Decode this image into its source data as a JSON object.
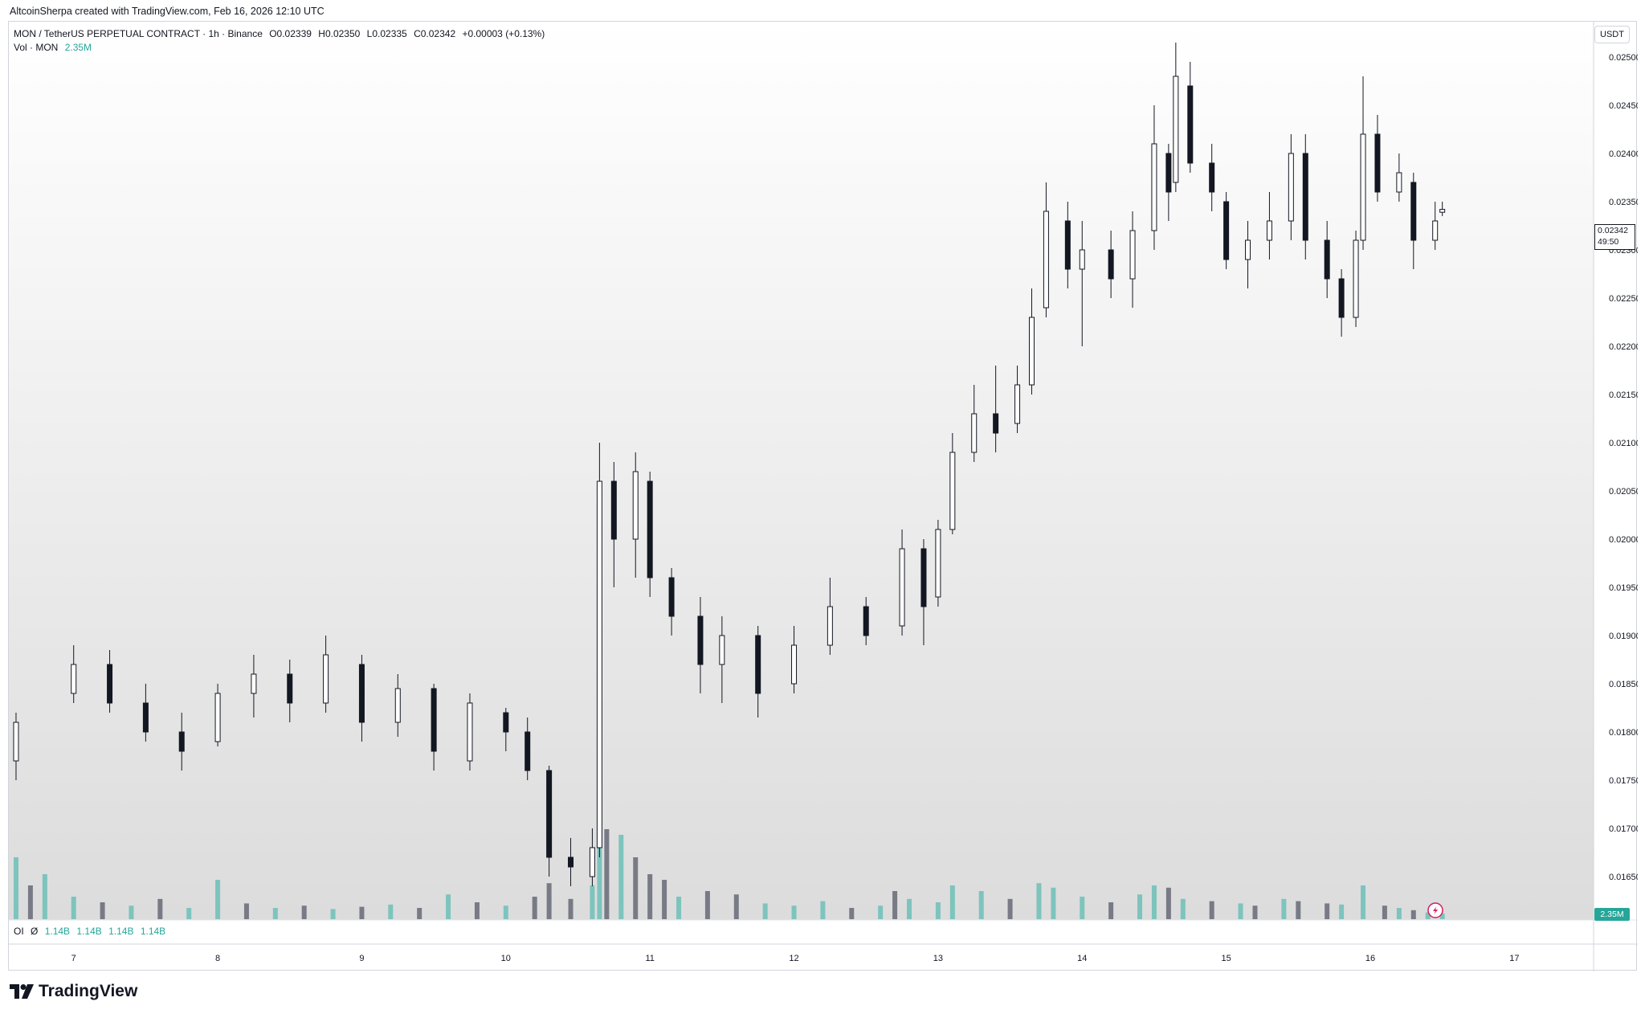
{
  "attribution": "AltcoinSherpa created with TradingView.com, Feb 16, 2026 12:10 UTC",
  "legend": {
    "symbol": "MON / TetherUS PERPETUAL CONTRACT · 1h · Binance",
    "open": "O0.02339",
    "high": "H0.02350",
    "low": "L0.02335",
    "close": "C0.02342",
    "change": "+0.00003 (+0.13%)",
    "vol_label": "Vol · MON",
    "vol_value": "2.35M"
  },
  "oi_legend": {
    "label": "OI",
    "symbol": "Ø",
    "values": [
      "1.14B",
      "1.14B",
      "1.14B",
      "1.14B"
    ]
  },
  "currency": "USDT",
  "price_tag": {
    "price": "0.02342",
    "countdown": "49:50"
  },
  "vol_tag": "2.35M",
  "logo_text": "TradingView",
  "colors": {
    "bull_volume": "#7dc4bd",
    "bear_volume": "#787b86",
    "bull_body": "#ffffff",
    "bear_body": "#131722",
    "wick": "#131722"
  },
  "chart_data": {
    "type": "candlestick",
    "title": "",
    "xlabel": "",
    "ylabel": "",
    "ylim": [
      0.0162,
      0.0252
    ],
    "y_ticks": [
      "0.01650",
      "0.01700",
      "0.01750",
      "0.01800",
      "0.01850",
      "0.01900",
      "0.01950",
      "0.02000",
      "0.02050",
      "0.02100",
      "0.02150",
      "0.02200",
      "0.02250",
      "0.02300",
      "0.02350",
      "0.02400",
      "0.02450",
      "0.02500"
    ],
    "x_ticks": [
      "7",
      "8",
      "9",
      "10",
      "11",
      "12",
      "13",
      "14",
      "15",
      "16",
      "17"
    ],
    "x_range": [
      6.55,
      17.55
    ],
    "grid": false,
    "series": [
      {
        "kind": "ohlc",
        "candles": [
          {
            "t": 6.6,
            "o": 0.0177,
            "h": 0.0182,
            "l": 0.0175,
            "c": 0.0181
          },
          {
            "t": 7.0,
            "o": 0.0184,
            "h": 0.0189,
            "l": 0.0183,
            "c": 0.0187
          },
          {
            "t": 7.25,
            "o": 0.0187,
            "h": 0.01885,
            "l": 0.0182,
            "c": 0.0183
          },
          {
            "t": 7.5,
            "o": 0.0183,
            "h": 0.0185,
            "l": 0.0179,
            "c": 0.018
          },
          {
            "t": 7.75,
            "o": 0.018,
            "h": 0.0182,
            "l": 0.0176,
            "c": 0.0178
          },
          {
            "t": 8.0,
            "o": 0.0179,
            "h": 0.0185,
            "l": 0.01785,
            "c": 0.0184
          },
          {
            "t": 8.25,
            "o": 0.0184,
            "h": 0.0188,
            "l": 0.01815,
            "c": 0.0186
          },
          {
            "t": 8.5,
            "o": 0.0186,
            "h": 0.01875,
            "l": 0.0181,
            "c": 0.0183
          },
          {
            "t": 8.75,
            "o": 0.0183,
            "h": 0.019,
            "l": 0.0182,
            "c": 0.0188
          },
          {
            "t": 9.0,
            "o": 0.0187,
            "h": 0.0188,
            "l": 0.0179,
            "c": 0.0181
          },
          {
            "t": 9.25,
            "o": 0.0181,
            "h": 0.0186,
            "l": 0.01795,
            "c": 0.01845
          },
          {
            "t": 9.5,
            "o": 0.01845,
            "h": 0.0185,
            "l": 0.0176,
            "c": 0.0178
          },
          {
            "t": 9.75,
            "o": 0.0177,
            "h": 0.0184,
            "l": 0.0176,
            "c": 0.0183
          },
          {
            "t": 10.0,
            "o": 0.0182,
            "h": 0.01825,
            "l": 0.0178,
            "c": 0.018
          },
          {
            "t": 10.15,
            "o": 0.018,
            "h": 0.01815,
            "l": 0.0175,
            "c": 0.0176
          },
          {
            "t": 10.3,
            "o": 0.0176,
            "h": 0.01765,
            "l": 0.0165,
            "c": 0.0167
          },
          {
            "t": 10.45,
            "o": 0.0167,
            "h": 0.0169,
            "l": 0.0164,
            "c": 0.0166
          },
          {
            "t": 10.6,
            "o": 0.0165,
            "h": 0.017,
            "l": 0.0164,
            "c": 0.0168
          },
          {
            "t": 10.65,
            "o": 0.0168,
            "h": 0.021,
            "l": 0.0167,
            "c": 0.0206
          },
          {
            "t": 10.75,
            "o": 0.0206,
            "h": 0.0208,
            "l": 0.0195,
            "c": 0.02
          },
          {
            "t": 10.9,
            "o": 0.02,
            "h": 0.0209,
            "l": 0.0196,
            "c": 0.0207
          },
          {
            "t": 11.0,
            "o": 0.0206,
            "h": 0.0207,
            "l": 0.0194,
            "c": 0.0196
          },
          {
            "t": 11.15,
            "o": 0.0196,
            "h": 0.0197,
            "l": 0.019,
            "c": 0.0192
          },
          {
            "t": 11.35,
            "o": 0.0192,
            "h": 0.0194,
            "l": 0.0184,
            "c": 0.0187
          },
          {
            "t": 11.5,
            "o": 0.0187,
            "h": 0.0192,
            "l": 0.0183,
            "c": 0.019
          },
          {
            "t": 11.75,
            "o": 0.019,
            "h": 0.0191,
            "l": 0.01815,
            "c": 0.0184
          },
          {
            "t": 12.0,
            "o": 0.0185,
            "h": 0.0191,
            "l": 0.0184,
            "c": 0.0189
          },
          {
            "t": 12.25,
            "o": 0.0189,
            "h": 0.0196,
            "l": 0.0188,
            "c": 0.0193
          },
          {
            "t": 12.5,
            "o": 0.0193,
            "h": 0.0194,
            "l": 0.0189,
            "c": 0.019
          },
          {
            "t": 12.75,
            "o": 0.0191,
            "h": 0.0201,
            "l": 0.019,
            "c": 0.0199
          },
          {
            "t": 12.9,
            "o": 0.0199,
            "h": 0.02,
            "l": 0.0189,
            "c": 0.0193
          },
          {
            "t": 13.0,
            "o": 0.0194,
            "h": 0.0202,
            "l": 0.0193,
            "c": 0.0201
          },
          {
            "t": 13.1,
            "o": 0.0201,
            "h": 0.0211,
            "l": 0.02005,
            "c": 0.0209
          },
          {
            "t": 13.25,
            "o": 0.0209,
            "h": 0.0216,
            "l": 0.0208,
            "c": 0.0213
          },
          {
            "t": 13.4,
            "o": 0.0213,
            "h": 0.0218,
            "l": 0.0209,
            "c": 0.0211
          },
          {
            "t": 13.55,
            "o": 0.0212,
            "h": 0.0218,
            "l": 0.0211,
            "c": 0.0216
          },
          {
            "t": 13.65,
            "o": 0.0216,
            "h": 0.0226,
            "l": 0.0215,
            "c": 0.0223
          },
          {
            "t": 13.75,
            "o": 0.0224,
            "h": 0.0237,
            "l": 0.0223,
            "c": 0.0234
          },
          {
            "t": 13.9,
            "o": 0.0233,
            "h": 0.0235,
            "l": 0.0226,
            "c": 0.0228
          },
          {
            "t": 14.0,
            "o": 0.0228,
            "h": 0.0233,
            "l": 0.022,
            "c": 0.023
          },
          {
            "t": 14.2,
            "o": 0.023,
            "h": 0.0232,
            "l": 0.0225,
            "c": 0.0227
          },
          {
            "t": 14.35,
            "o": 0.0227,
            "h": 0.0234,
            "l": 0.0224,
            "c": 0.0232
          },
          {
            "t": 14.5,
            "o": 0.0232,
            "h": 0.0245,
            "l": 0.023,
            "c": 0.0241
          },
          {
            "t": 14.6,
            "o": 0.024,
            "h": 0.0241,
            "l": 0.0233,
            "c": 0.0236
          },
          {
            "t": 14.65,
            "o": 0.0237,
            "h": 0.02515,
            "l": 0.0236,
            "c": 0.0248
          },
          {
            "t": 14.75,
            "o": 0.0247,
            "h": 0.02495,
            "l": 0.0238,
            "c": 0.0239
          },
          {
            "t": 14.9,
            "o": 0.0239,
            "h": 0.0241,
            "l": 0.0234,
            "c": 0.0236
          },
          {
            "t": 15.0,
            "o": 0.0235,
            "h": 0.0236,
            "l": 0.0228,
            "c": 0.0229
          },
          {
            "t": 15.15,
            "o": 0.0229,
            "h": 0.0233,
            "l": 0.0226,
            "c": 0.0231
          },
          {
            "t": 15.3,
            "o": 0.0231,
            "h": 0.0236,
            "l": 0.0229,
            "c": 0.0233
          },
          {
            "t": 15.45,
            "o": 0.0233,
            "h": 0.0242,
            "l": 0.0231,
            "c": 0.024
          },
          {
            "t": 15.55,
            "o": 0.024,
            "h": 0.0242,
            "l": 0.0229,
            "c": 0.0231
          },
          {
            "t": 15.7,
            "o": 0.0231,
            "h": 0.0233,
            "l": 0.0225,
            "c": 0.0227
          },
          {
            "t": 15.8,
            "o": 0.0227,
            "h": 0.0228,
            "l": 0.0221,
            "c": 0.0223
          },
          {
            "t": 15.9,
            "o": 0.0223,
            "h": 0.0232,
            "l": 0.0222,
            "c": 0.0231
          },
          {
            "t": 15.95,
            "o": 0.0231,
            "h": 0.0248,
            "l": 0.023,
            "c": 0.0242
          },
          {
            "t": 16.05,
            "o": 0.0242,
            "h": 0.0244,
            "l": 0.0235,
            "c": 0.0236
          },
          {
            "t": 16.2,
            "o": 0.0236,
            "h": 0.024,
            "l": 0.0235,
            "c": 0.0238
          },
          {
            "t": 16.3,
            "o": 0.0237,
            "h": 0.0238,
            "l": 0.0228,
            "c": 0.0231
          },
          {
            "t": 16.45,
            "o": 0.0231,
            "h": 0.0235,
            "l": 0.023,
            "c": 0.0233
          },
          {
            "t": 16.5,
            "o": 0.02339,
            "h": 0.0235,
            "l": 0.02335,
            "c": 0.02342
          }
        ]
      },
      {
        "kind": "volume",
        "bars": [
          {
            "t": 6.6,
            "v": 55,
            "up": true
          },
          {
            "t": 6.7,
            "v": 30,
            "up": false
          },
          {
            "t": 6.8,
            "v": 40,
            "up": true
          },
          {
            "t": 7.0,
            "v": 20,
            "up": true
          },
          {
            "t": 7.2,
            "v": 15,
            "up": false
          },
          {
            "t": 7.4,
            "v": 12,
            "up": true
          },
          {
            "t": 7.6,
            "v": 18,
            "up": false
          },
          {
            "t": 7.8,
            "v": 10,
            "up": true
          },
          {
            "t": 8.0,
            "v": 35,
            "up": true
          },
          {
            "t": 8.2,
            "v": 14,
            "up": false
          },
          {
            "t": 8.4,
            "v": 10,
            "up": true
          },
          {
            "t": 8.6,
            "v": 12,
            "up": false
          },
          {
            "t": 8.8,
            "v": 9,
            "up": true
          },
          {
            "t": 9.0,
            "v": 11,
            "up": false
          },
          {
            "t": 9.2,
            "v": 13,
            "up": true
          },
          {
            "t": 9.4,
            "v": 10,
            "up": false
          },
          {
            "t": 9.6,
            "v": 22,
            "up": true
          },
          {
            "t": 9.8,
            "v": 15,
            "up": false
          },
          {
            "t": 10.0,
            "v": 12,
            "up": true
          },
          {
            "t": 10.2,
            "v": 20,
            "up": false
          },
          {
            "t": 10.3,
            "v": 32,
            "up": false
          },
          {
            "t": 10.45,
            "v": 18,
            "up": false
          },
          {
            "t": 10.6,
            "v": 30,
            "up": true
          },
          {
            "t": 10.65,
            "v": 200,
            "up": true
          },
          {
            "t": 10.7,
            "v": 80,
            "up": false
          },
          {
            "t": 10.8,
            "v": 75,
            "up": true
          },
          {
            "t": 10.9,
            "v": 55,
            "up": false
          },
          {
            "t": 11.0,
            "v": 40,
            "up": false
          },
          {
            "t": 11.1,
            "v": 35,
            "up": false
          },
          {
            "t": 11.2,
            "v": 20,
            "up": true
          },
          {
            "t": 11.4,
            "v": 25,
            "up": false
          },
          {
            "t": 11.6,
            "v": 22,
            "up": false
          },
          {
            "t": 11.8,
            "v": 14,
            "up": true
          },
          {
            "t": 12.0,
            "v": 12,
            "up": true
          },
          {
            "t": 12.2,
            "v": 16,
            "up": true
          },
          {
            "t": 12.4,
            "v": 10,
            "up": false
          },
          {
            "t": 12.6,
            "v": 12,
            "up": true
          },
          {
            "t": 12.7,
            "v": 25,
            "up": false
          },
          {
            "t": 12.8,
            "v": 18,
            "up": true
          },
          {
            "t": 13.0,
            "v": 15,
            "up": true
          },
          {
            "t": 13.1,
            "v": 30,
            "up": true
          },
          {
            "t": 13.3,
            "v": 25,
            "up": true
          },
          {
            "t": 13.5,
            "v": 18,
            "up": false
          },
          {
            "t": 13.7,
            "v": 32,
            "up": true
          },
          {
            "t": 13.8,
            "v": 28,
            "up": true
          },
          {
            "t": 14.0,
            "v": 20,
            "up": true
          },
          {
            "t": 14.2,
            "v": 15,
            "up": false
          },
          {
            "t": 14.4,
            "v": 22,
            "up": true
          },
          {
            "t": 14.5,
            "v": 30,
            "up": true
          },
          {
            "t": 14.6,
            "v": 28,
            "up": false
          },
          {
            "t": 14.7,
            "v": 18,
            "up": true
          },
          {
            "t": 14.9,
            "v": 16,
            "up": false
          },
          {
            "t": 15.1,
            "v": 14,
            "up": true
          },
          {
            "t": 15.2,
            "v": 12,
            "up": false
          },
          {
            "t": 15.4,
            "v": 18,
            "up": true
          },
          {
            "t": 15.5,
            "v": 16,
            "up": false
          },
          {
            "t": 15.7,
            "v": 14,
            "up": false
          },
          {
            "t": 15.8,
            "v": 13,
            "up": true
          },
          {
            "t": 15.95,
            "v": 30,
            "up": true
          },
          {
            "t": 16.1,
            "v": 12,
            "up": false
          },
          {
            "t": 16.2,
            "v": 10,
            "up": true
          },
          {
            "t": 16.3,
            "v": 8,
            "up": false
          },
          {
            "t": 16.4,
            "v": 6,
            "up": true
          },
          {
            "t": 16.5,
            "v": 5,
            "up": true
          }
        ]
      }
    ]
  }
}
